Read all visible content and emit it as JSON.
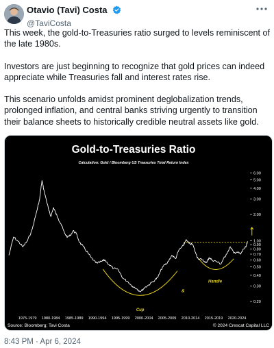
{
  "author": {
    "display_name": "Otavio (Tavi) Costa",
    "handle": "@TaviCosta",
    "verified": true
  },
  "more_icon": "more-horizontal-icon",
  "tweet_text": [
    "This week, the gold-to-Treasuries ratio surged to levels reminiscent of the late 1980s.",
    "Investors are just beginning to recognize that gold prices can indeed appreciate while Treasuries fall and interest rates rise.",
    "This scenario unfolds amidst prominent deglobalization trends, prolonged inflation, and central banks striving urgently to transition their balance sheets to historically credible neutral assets like gold."
  ],
  "timestamp": "8:43 PM · Apr 6, 2024",
  "colors": {
    "chart_background": "#000000",
    "series": "#ffffff",
    "annotation": "#e6d21c",
    "accent": "#1d9bf0"
  },
  "chart_data": {
    "type": "line",
    "title": "Gold-to-Treasuries Ratio",
    "subtitle": "Calculation: Gold / Bloomberg US Treasuries Total Return Index",
    "y_scale": "log",
    "ylim": [
      0.15,
      6.5
    ],
    "y_ticks": [
      "6.00",
      "5.00",
      "4.00",
      "3.00",
      "2.00",
      "1.00",
      "0.90",
      "0.80",
      "0.70",
      "0.60",
      "0.50",
      "0.40",
      "0.30",
      "0.20"
    ],
    "y_tick_values": [
      6,
      5,
      4,
      3,
      2,
      1,
      0.9,
      0.8,
      0.7,
      0.6,
      0.5,
      0.4,
      0.3,
      0.2
    ],
    "x_range": [
      1973.0,
      2024.5
    ],
    "x_ticks": [
      "1975-1979",
      "1980-1984",
      "1985-1989",
      "1990-1994",
      "1995-1999",
      "2000-2004",
      "2005-2009",
      "2010-2014",
      "2015-2019",
      "2020-2024"
    ],
    "x_tick_positions": [
      1977,
      1982,
      1987,
      1992,
      1997,
      2002,
      2007,
      2012,
      2017,
      2022
    ],
    "series": [
      {
        "x": [
          1973.0,
          1974.0,
          1975.0,
          1976.0,
          1977.0,
          1978.0,
          1979.0,
          1979.6,
          1980.1,
          1980.6,
          1981.0,
          1981.6,
          1982.0,
          1982.6,
          1983.0,
          1983.6,
          1984.2,
          1985.0,
          1985.6,
          1986.2,
          1986.8,
          1987.5,
          1988.2,
          1989.0,
          1990.0,
          1991.0,
          1992.0,
          1993.0,
          1993.6,
          1994.5,
          1995.5,
          1996.5,
          1997.5,
          1998.5,
          1999.5,
          2000.5,
          2001.3,
          2002.2,
          2003.0,
          2004.0,
          2005.0,
          2006.0,
          2007.0,
          2008.0,
          2008.8,
          2009.5,
          2010.5,
          2011.0,
          2011.7,
          2012.5,
          2013.2,
          2013.6,
          2014.5,
          2015.5,
          2016.0,
          2016.6,
          2017.5,
          2018.5,
          2019.0,
          2019.7,
          2020.6,
          2021.3,
          2022.0,
          2022.8,
          2023.4,
          2023.9,
          2024.3
        ],
        "y": [
          0.68,
          1.1,
          0.98,
          0.85,
          1.0,
          1.35,
          2.2,
          3.0,
          4.9,
          3.6,
          3.0,
          2.2,
          1.9,
          2.4,
          2.1,
          1.8,
          1.55,
          1.2,
          1.1,
          1.15,
          1.3,
          1.2,
          0.95,
          0.85,
          0.72,
          0.6,
          0.55,
          0.58,
          0.6,
          0.53,
          0.48,
          0.46,
          0.37,
          0.34,
          0.3,
          0.28,
          0.26,
          0.29,
          0.31,
          0.34,
          0.38,
          0.5,
          0.55,
          0.68,
          0.62,
          0.78,
          0.88,
          1.02,
          0.93,
          0.9,
          0.7,
          0.63,
          0.6,
          0.56,
          0.64,
          0.6,
          0.58,
          0.54,
          0.6,
          0.7,
          0.85,
          0.72,
          0.74,
          0.7,
          0.8,
          0.84,
          0.98
        ]
      }
    ],
    "annotations": [
      {
        "text": "Cup"
      },
      {
        "text": "Handle"
      },
      {
        "text": "&"
      }
    ],
    "resistance_level": 0.96,
    "source": "Source: Bloomberg; Tavi Costa",
    "copyright": "© 2024 Crescat Capital LLC"
  }
}
